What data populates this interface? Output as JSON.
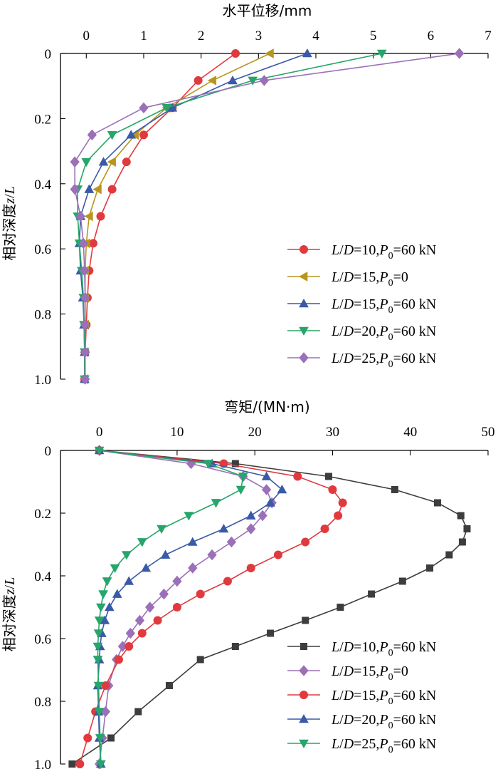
{
  "chart_data": [
    {
      "type": "line",
      "xlabel": "水平位移/mm",
      "ylabel_main": "相对深度",
      "ylabel_var": "z",
      "ylabel_sep": "/",
      "ylabel_var2": "L",
      "xlim": [
        -0.45,
        7
      ],
      "ylim": [
        0,
        1.0
      ],
      "x_ticks": [
        0,
        1,
        2,
        3,
        4,
        5,
        6,
        7
      ],
      "y_ticks": [
        0,
        0.2,
        0.4,
        0.6,
        0.8,
        1.0
      ],
      "x_tick_labels": [
        "0",
        "1",
        "2",
        "3",
        "4",
        "5",
        "6",
        "7"
      ],
      "y_tick_labels": [
        "0",
        "0.2",
        "0.4",
        "0.6",
        "0.8",
        "1.0"
      ],
      "series": [
        {
          "legend": {
            "a": "L",
            "sep": "/",
            "b": "D",
            "eq": "=10,",
            "p": "P",
            "sub": "0",
            "rest": "=60 kN"
          },
          "color": "#e03a3e",
          "marker": "circle",
          "points": [
            [
              2.6,
              0.0
            ],
            [
              1.95,
              0.083
            ],
            [
              1.5,
              0.167
            ],
            [
              1.0,
              0.25
            ],
            [
              0.7,
              0.333
            ],
            [
              0.45,
              0.417
            ],
            [
              0.25,
              0.5
            ],
            [
              0.12,
              0.583
            ],
            [
              0.05,
              0.667
            ],
            [
              0.02,
              0.75
            ],
            [
              0.0,
              0.833
            ],
            [
              -0.02,
              0.917
            ],
            [
              -0.03,
              1.0
            ]
          ]
        },
        {
          "legend": {
            "a": "L",
            "sep": "/",
            "b": "D",
            "eq": "=15,",
            "p": "P",
            "sub": "0",
            "rest": "=0"
          },
          "color": "#b8961e",
          "marker": "triangle-left",
          "points": [
            [
              3.2,
              0.0
            ],
            [
              2.2,
              0.083
            ],
            [
              1.4,
              0.167
            ],
            [
              0.85,
              0.25
            ],
            [
              0.45,
              0.333
            ],
            [
              0.2,
              0.417
            ],
            [
              0.05,
              0.5
            ],
            [
              0.0,
              0.583
            ],
            [
              -0.02,
              0.667
            ],
            [
              -0.02,
              0.75
            ],
            [
              -0.02,
              0.833
            ],
            [
              -0.03,
              0.917
            ],
            [
              -0.03,
              1.0
            ]
          ]
        },
        {
          "legend": {
            "a": "L",
            "sep": "/",
            "b": "D",
            "eq": "=15,",
            "p": "P",
            "sub": "0",
            "rest": "=60 kN"
          },
          "color": "#3a5aa8",
          "marker": "triangle-up",
          "points": [
            [
              3.85,
              0.0
            ],
            [
              2.55,
              0.083
            ],
            [
              1.5,
              0.167
            ],
            [
              0.78,
              0.25
            ],
            [
              0.3,
              0.333
            ],
            [
              0.05,
              0.417
            ],
            [
              -0.1,
              0.5
            ],
            [
              -0.12,
              0.583
            ],
            [
              -0.1,
              0.667
            ],
            [
              -0.06,
              0.75
            ],
            [
              -0.04,
              0.833
            ],
            [
              -0.03,
              0.917
            ],
            [
              -0.03,
              1.0
            ]
          ]
        },
        {
          "legend": {
            "a": "L",
            "sep": "/",
            "b": "D",
            "eq": "=20,",
            "p": "P",
            "sub": "0",
            "rest": "=60 kN"
          },
          "color": "#27a56a",
          "marker": "triangle-down",
          "points": [
            [
              5.15,
              0.0
            ],
            [
              2.9,
              0.083
            ],
            [
              1.4,
              0.167
            ],
            [
              0.45,
              0.25
            ],
            [
              0.0,
              0.333
            ],
            [
              -0.15,
              0.417
            ],
            [
              -0.15,
              0.5
            ],
            [
              -0.12,
              0.583
            ],
            [
              -0.08,
              0.667
            ],
            [
              -0.05,
              0.75
            ],
            [
              -0.04,
              0.833
            ],
            [
              -0.03,
              0.917
            ],
            [
              -0.03,
              1.0
            ]
          ]
        },
        {
          "legend": {
            "a": "L",
            "sep": "/",
            "b": "D",
            "eq": "=25,",
            "p": "P",
            "sub": "0",
            "rest": "=60 kN"
          },
          "color": "#9b70b8",
          "marker": "diamond",
          "points": [
            [
              6.5,
              0.0
            ],
            [
              3.1,
              0.083
            ],
            [
              1.0,
              0.167
            ],
            [
              0.1,
              0.25
            ],
            [
              -0.2,
              0.333
            ],
            [
              -0.2,
              0.417
            ],
            [
              -0.1,
              0.5
            ],
            [
              -0.05,
              0.583
            ],
            [
              -0.03,
              0.667
            ],
            [
              -0.02,
              0.75
            ],
            [
              -0.02,
              0.833
            ],
            [
              -0.02,
              0.917
            ],
            [
              -0.02,
              1.0
            ]
          ]
        }
      ],
      "legend_position": "bottom-right"
    },
    {
      "type": "line",
      "xlabel": "弯矩/(MN·m)",
      "ylabel_main": "相对深度",
      "ylabel_var": "z",
      "ylabel_sep": "/",
      "ylabel_var2": "L",
      "xlim": [
        -5,
        50
      ],
      "ylim": [
        0,
        1.0
      ],
      "x_ticks": [
        0,
        10,
        20,
        30,
        40,
        50
      ],
      "y_ticks": [
        0,
        0.2,
        0.4,
        0.6,
        0.8,
        1.0
      ],
      "x_tick_labels": [
        "0",
        "10",
        "20",
        "30",
        "40",
        "50"
      ],
      "y_tick_labels": [
        "0",
        "0.2",
        "0.4",
        "0.6",
        "0.8",
        "1.0"
      ],
      "series": [
        {
          "legend": {
            "a": "L",
            "sep": "/",
            "b": "D",
            "eq": "=10,",
            "p": "P",
            "sub": "0",
            "rest": "=60 kN"
          },
          "color": "#3d3d3d",
          "marker": "square",
          "points": [
            [
              0,
              0.0
            ],
            [
              17.5,
              0.042
            ],
            [
              29.5,
              0.083
            ],
            [
              38.0,
              0.125
            ],
            [
              43.5,
              0.167
            ],
            [
              46.5,
              0.208
            ],
            [
              47.3,
              0.25
            ],
            [
              46.7,
              0.292
            ],
            [
              45.0,
              0.333
            ],
            [
              42.5,
              0.375
            ],
            [
              39.0,
              0.417
            ],
            [
              35.0,
              0.458
            ],
            [
              31.0,
              0.5
            ],
            [
              26.5,
              0.542
            ],
            [
              22.0,
              0.583
            ],
            [
              17.5,
              0.625
            ],
            [
              13.0,
              0.667
            ],
            [
              9.0,
              0.75
            ],
            [
              5.0,
              0.833
            ],
            [
              1.5,
              0.917
            ],
            [
              -3.5,
              1.0
            ]
          ]
        },
        {
          "legend": {
            "a": "L",
            "sep": "/",
            "b": "D",
            "eq": "=15,",
            "p": "P",
            "sub": "0",
            "rest": "=0"
          },
          "color": "#9b70b8",
          "marker": "diamond",
          "points": [
            [
              0,
              0.0
            ],
            [
              11.8,
              0.042
            ],
            [
              18.5,
              0.083
            ],
            [
              21.5,
              0.125
            ],
            [
              22.2,
              0.167
            ],
            [
              21.0,
              0.208
            ],
            [
              19.5,
              0.25
            ],
            [
              17.0,
              0.292
            ],
            [
              14.5,
              0.333
            ],
            [
              12.0,
              0.375
            ],
            [
              10.0,
              0.417
            ],
            [
              8.3,
              0.458
            ],
            [
              6.5,
              0.5
            ],
            [
              5.2,
              0.542
            ],
            [
              4.0,
              0.583
            ],
            [
              3.0,
              0.625
            ],
            [
              2.2,
              0.667
            ],
            [
              1.2,
              0.75
            ],
            [
              0.8,
              0.833
            ],
            [
              0.4,
              0.917
            ],
            [
              0.0,
              1.0
            ]
          ]
        },
        {
          "legend": {
            "a": "L",
            "sep": "/",
            "b": "D",
            "eq": "=15,",
            "p": "P",
            "sub": "0",
            "rest": "=60 kN"
          },
          "color": "#e03a3e",
          "marker": "circle",
          "points": [
            [
              0,
              0.0
            ],
            [
              16.0,
              0.042
            ],
            [
              25.5,
              0.083
            ],
            [
              30.0,
              0.125
            ],
            [
              31.3,
              0.167
            ],
            [
              30.7,
              0.208
            ],
            [
              29.0,
              0.25
            ],
            [
              26.5,
              0.292
            ],
            [
              23.0,
              0.333
            ],
            [
              19.5,
              0.375
            ],
            [
              16.5,
              0.417
            ],
            [
              13.0,
              0.458
            ],
            [
              10.0,
              0.5
            ],
            [
              7.5,
              0.542
            ],
            [
              5.5,
              0.583
            ],
            [
              3.8,
              0.625
            ],
            [
              2.5,
              0.667
            ],
            [
              0.8,
              0.75
            ],
            [
              -0.5,
              0.833
            ],
            [
              -1.5,
              0.917
            ],
            [
              -2.5,
              1.0
            ]
          ]
        },
        {
          "legend": {
            "a": "L",
            "sep": "/",
            "b": "D",
            "eq": "=20,",
            "p": "P",
            "sub": "0",
            "rest": "=60 kN"
          },
          "color": "#3a5aa8",
          "marker": "triangle-up",
          "points": [
            [
              0,
              0.0
            ],
            [
              14.5,
              0.042
            ],
            [
              21.5,
              0.083
            ],
            [
              23.5,
              0.125
            ],
            [
              22.0,
              0.167
            ],
            [
              19.5,
              0.208
            ],
            [
              16.0,
              0.25
            ],
            [
              12.0,
              0.292
            ],
            [
              8.5,
              0.333
            ],
            [
              6.0,
              0.375
            ],
            [
              3.8,
              0.417
            ],
            [
              2.3,
              0.458
            ],
            [
              1.3,
              0.5
            ],
            [
              0.7,
              0.542
            ],
            [
              0.3,
              0.583
            ],
            [
              0.1,
              0.625
            ],
            [
              0.0,
              0.667
            ],
            [
              -0.2,
              0.75
            ],
            [
              -0.1,
              0.833
            ],
            [
              0.0,
              0.917
            ],
            [
              0.2,
              1.0
            ]
          ]
        },
        {
          "legend": {
            "a": "L",
            "sep": "/",
            "b": "D",
            "eq": "=25,",
            "p": "P",
            "sub": "0",
            "rest": "=60 kN"
          },
          "color": "#27a56a",
          "marker": "triangle-down",
          "points": [
            [
              0,
              0.0
            ],
            [
              14.0,
              0.042
            ],
            [
              18.5,
              0.083
            ],
            [
              18.2,
              0.125
            ],
            [
              15.0,
              0.167
            ],
            [
              11.5,
              0.208
            ],
            [
              8.0,
              0.25
            ],
            [
              5.5,
              0.292
            ],
            [
              3.5,
              0.333
            ],
            [
              2.0,
              0.375
            ],
            [
              1.0,
              0.417
            ],
            [
              0.5,
              0.458
            ],
            [
              0.2,
              0.5
            ],
            [
              0.0,
              0.542
            ],
            [
              -0.1,
              0.583
            ],
            [
              -0.2,
              0.625
            ],
            [
              -0.2,
              0.667
            ],
            [
              -0.1,
              0.75
            ],
            [
              0.0,
              0.833
            ],
            [
              0.1,
              0.917
            ],
            [
              0.2,
              1.0
            ]
          ]
        }
      ],
      "legend_position": "bottom-right"
    }
  ]
}
